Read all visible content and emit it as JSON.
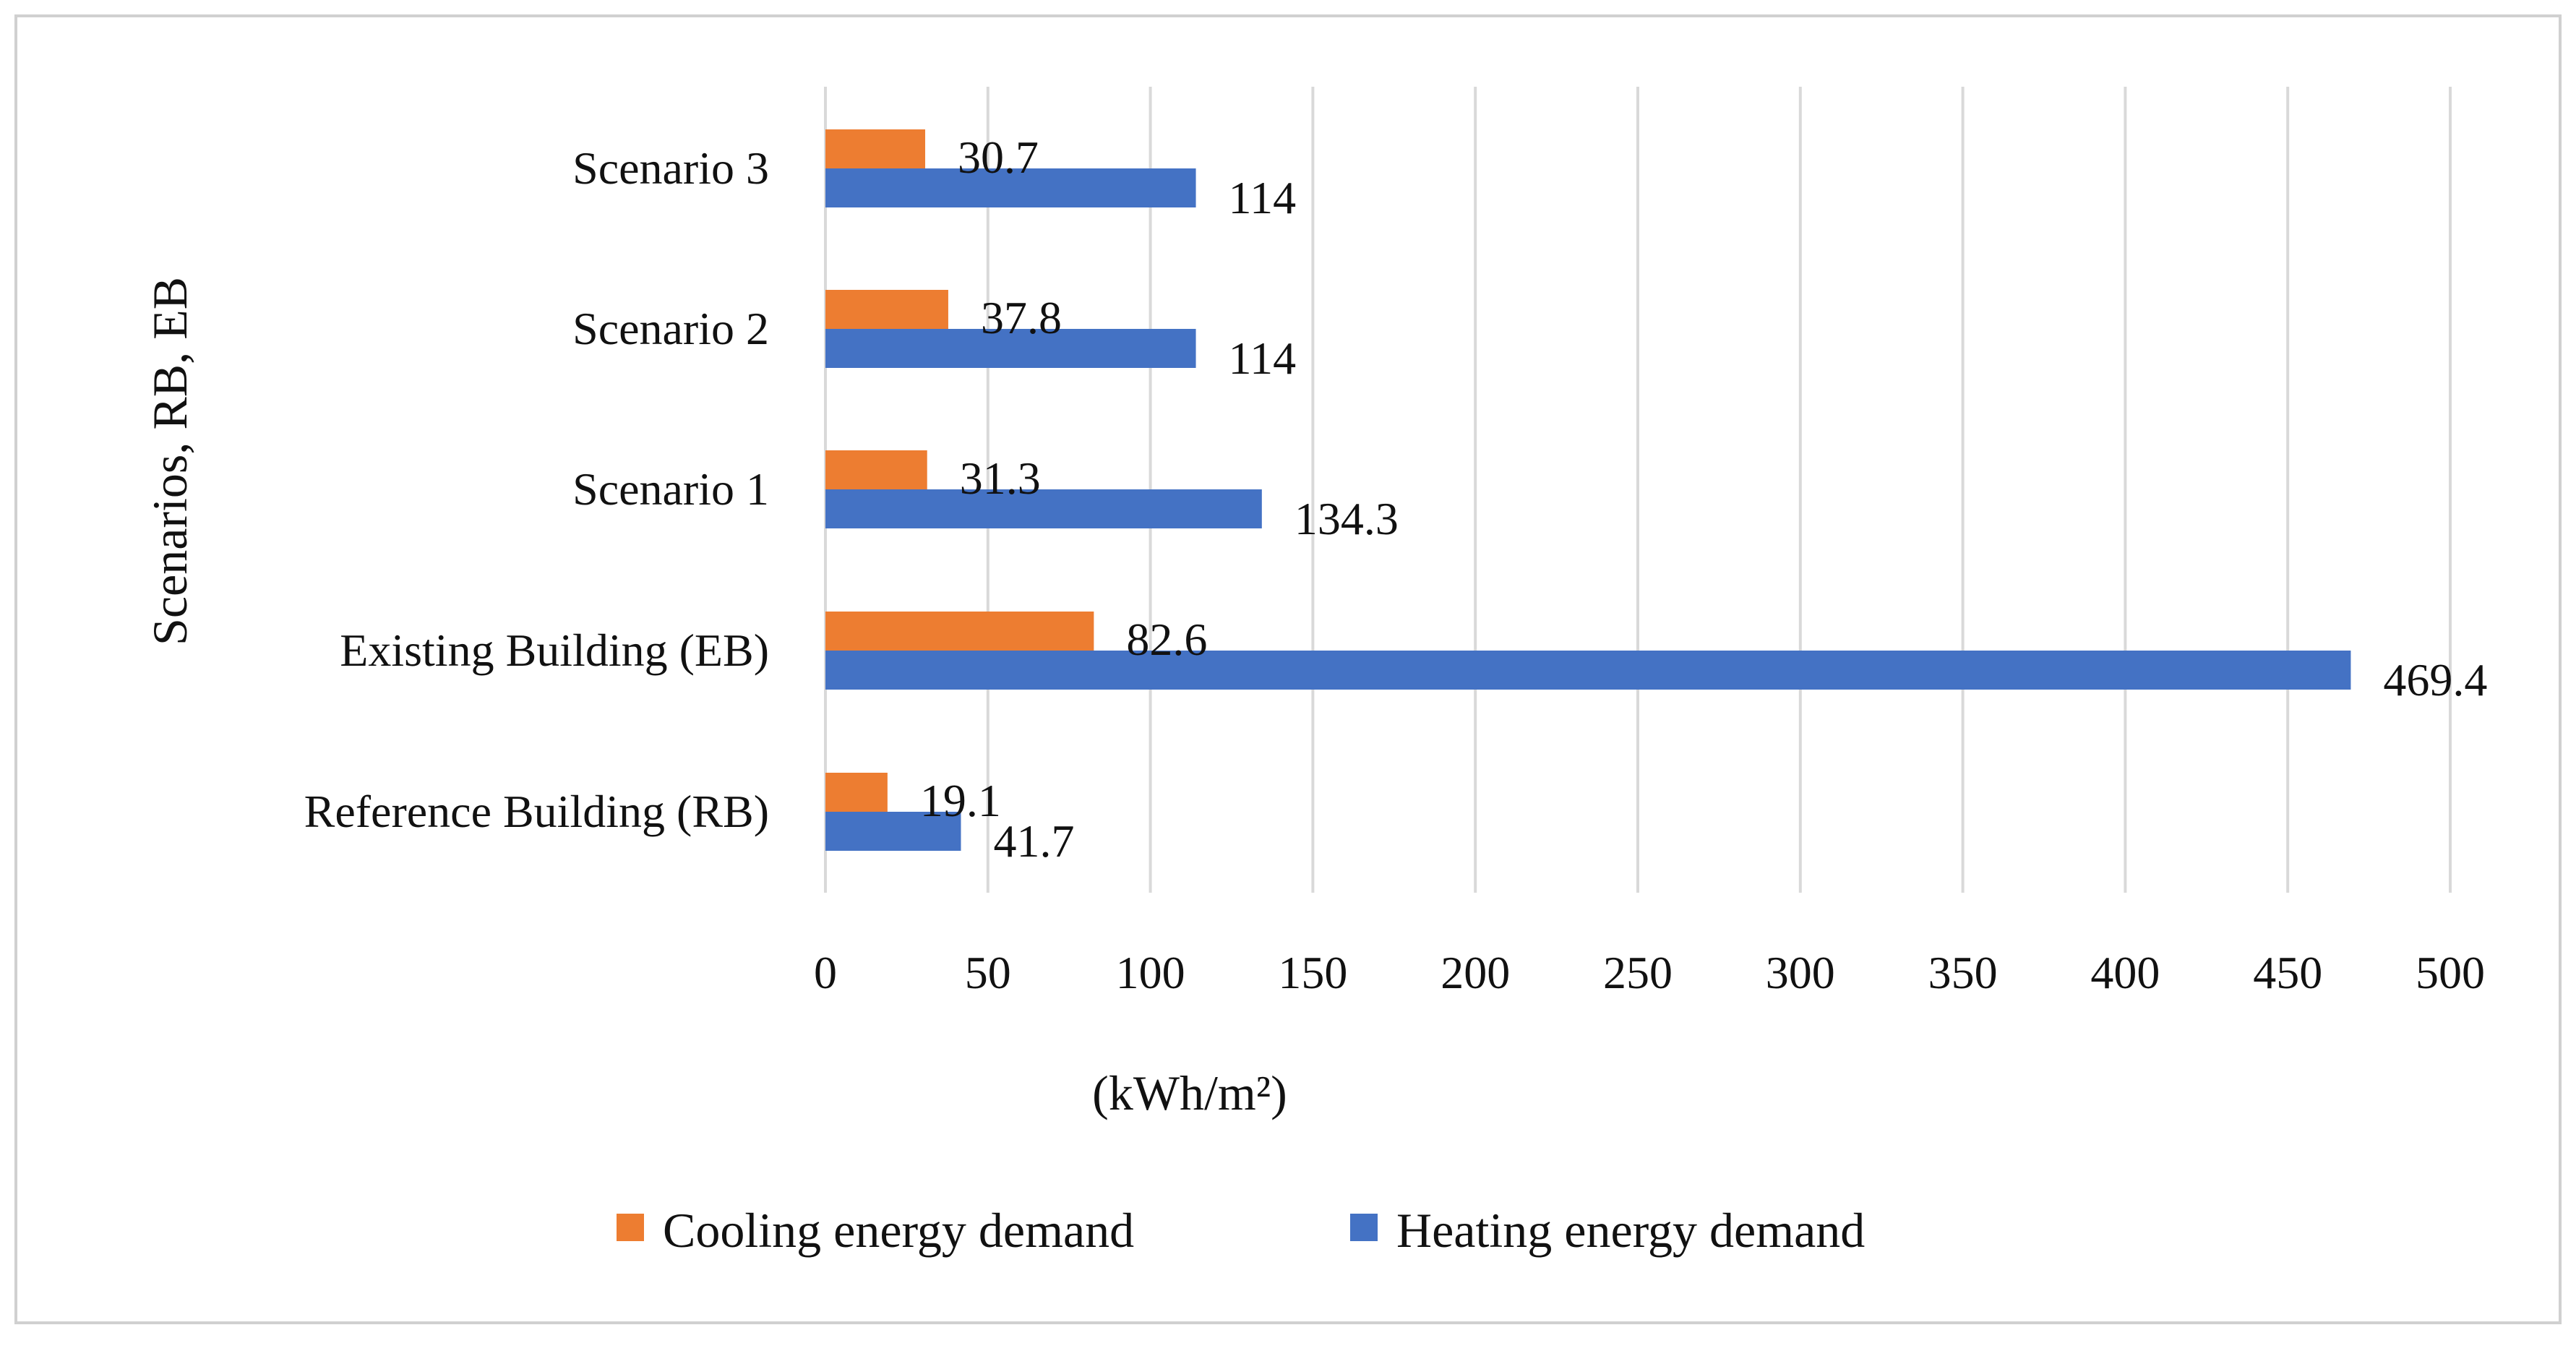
{
  "chart_data": {
    "type": "bar",
    "orientation": "horizontal",
    "categories": [
      "Reference Building (RB)",
      "Existing Building (EB)",
      "Scenario 1",
      "Scenario 2",
      "Scenario 3"
    ],
    "series": [
      {
        "name": "Cooling energy demand",
        "color": "#ED7D31",
        "values": [
          19.1,
          82.6,
          31.3,
          37.8,
          30.7
        ]
      },
      {
        "name": "Heating energy demand",
        "color": "#4472C4",
        "values": [
          41.7,
          469.4,
          134.3,
          114,
          114
        ]
      }
    ],
    "data_labels": {
      "cooling": [
        "19.1",
        "82.6",
        "31.3",
        "37.8",
        "30.7"
      ],
      "heating": [
        "41.7",
        "469.4",
        "134.3",
        "114",
        "114"
      ]
    },
    "xlabel": "(kWh/m²)",
    "ylabel": "Scenarios, RB, EB",
    "xlim": [
      0,
      500
    ],
    "xticks": [
      0,
      50,
      100,
      150,
      200,
      250,
      300,
      350,
      400,
      450,
      500
    ],
    "xtick_labels": [
      "0",
      "50",
      "100",
      "150",
      "200",
      "250",
      "300",
      "350",
      "400",
      "450",
      "500"
    ],
    "grid": "vertical",
    "legend": "bottom",
    "legend_entries": [
      "Cooling energy demand",
      "Heating energy demand"
    ]
  }
}
